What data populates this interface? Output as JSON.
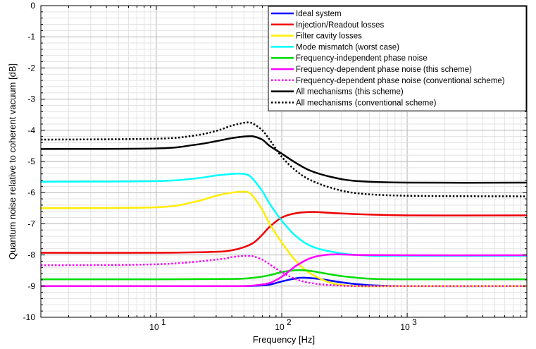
{
  "chart_data": {
    "type": "line",
    "title": "",
    "xlabel": "Frequency [Hz]",
    "ylabel": "Quantum noise relative to coherent vacuum [dB]",
    "x_scale": "log",
    "xlim": [
      1.2,
      9000
    ],
    "ylim": [
      -10,
      0
    ],
    "x_ticks": [
      {
        "value": 10,
        "base": "10",
        "exp": "1"
      },
      {
        "value": 100,
        "base": "10",
        "exp": "2"
      },
      {
        "value": 1000,
        "base": "10",
        "exp": "3"
      }
    ],
    "y_ticks": [
      "0",
      "-1",
      "-2",
      "-3",
      "-4",
      "-5",
      "-6",
      "-7",
      "-8",
      "-9",
      "-10"
    ],
    "y_tick_values": [
      0,
      -1,
      -2,
      -3,
      -4,
      -5,
      -6,
      -7,
      -8,
      -9,
      -10
    ],
    "grid": true,
    "legend_position": "top-right",
    "series": [
      {
        "name": "Ideal system",
        "color": "#0000ff",
        "dash": "solid",
        "x": [
          1.2,
          10,
          40,
          60,
          80,
          100,
          130,
          150,
          200,
          300,
          500,
          1000,
          9000
        ],
        "y": [
          -9.0,
          -9.0,
          -9.0,
          -8.99,
          -8.95,
          -8.85,
          -8.75,
          -8.73,
          -8.77,
          -8.88,
          -8.97,
          -9.0,
          -9.0
        ]
      },
      {
        "name": "Injection/Readout losses",
        "color": "#ee0000",
        "dash": "solid",
        "x": [
          1.2,
          10,
          30,
          40,
          50,
          60,
          70,
          80,
          100,
          130,
          180,
          300,
          1000,
          9000
        ],
        "y": [
          -7.93,
          -7.93,
          -7.9,
          -7.85,
          -7.75,
          -7.6,
          -7.35,
          -7.1,
          -6.8,
          -6.66,
          -6.62,
          -6.67,
          -6.73,
          -6.73
        ]
      },
      {
        "name": "Filter cavity losses",
        "color": "#ffee00",
        "dash": "solid",
        "x": [
          1.2,
          10,
          20,
          30,
          40,
          50,
          55,
          60,
          70,
          80,
          100,
          130,
          170,
          250,
          400,
          1000,
          9000
        ],
        "y": [
          -6.5,
          -6.47,
          -6.3,
          -6.1,
          -6.0,
          -5.97,
          -6.0,
          -6.15,
          -6.55,
          -7.0,
          -7.6,
          -8.2,
          -8.6,
          -8.9,
          -9.0,
          -9.0,
          -9.0
        ]
      },
      {
        "name": "Mode mismatch (worst case)",
        "color": "#00ffff",
        "dash": "solid",
        "x": [
          1.2,
          10,
          20,
          30,
          40,
          45,
          50,
          55,
          60,
          70,
          80,
          100,
          130,
          180,
          300,
          500,
          1000,
          9000
        ],
        "y": [
          -5.65,
          -5.63,
          -5.55,
          -5.45,
          -5.4,
          -5.39,
          -5.4,
          -5.45,
          -5.6,
          -5.95,
          -6.35,
          -6.9,
          -7.4,
          -7.75,
          -7.95,
          -8.02,
          -8.03,
          -8.03
        ]
      },
      {
        "name": "Frequency-independent phase noise",
        "color": "#00dd00",
        "dash": "solid",
        "x": [
          1.2,
          10,
          40,
          60,
          80,
          100,
          130,
          160,
          200,
          300,
          500,
          1000,
          9000
        ],
        "y": [
          -8.78,
          -8.78,
          -8.77,
          -8.73,
          -8.65,
          -8.55,
          -8.49,
          -8.5,
          -8.56,
          -8.68,
          -8.76,
          -8.78,
          -8.78
        ]
      },
      {
        "name": "Frequency-dependent phase noise (this scheme)",
        "color": "#ff00ff",
        "dash": "solid",
        "x": [
          1.2,
          10,
          40,
          60,
          80,
          100,
          130,
          170,
          220,
          280,
          400,
          1000,
          9000
        ],
        "y": [
          -9.0,
          -9.0,
          -9.0,
          -8.98,
          -8.9,
          -8.7,
          -8.35,
          -8.1,
          -8.0,
          -7.98,
          -8.0,
          -8.01,
          -8.01
        ]
      },
      {
        "name": "Frequency-dependent phase noise (conventional scheme)",
        "color": "#ff00ff",
        "dash": "dotted",
        "x": [
          1.2,
          10,
          30,
          40,
          50,
          55,
          60,
          70,
          80,
          100,
          130,
          170,
          250,
          400,
          1000,
          9000
        ],
        "y": [
          -8.33,
          -8.3,
          -8.15,
          -8.07,
          -8.03,
          -8.03,
          -8.05,
          -8.15,
          -8.3,
          -8.55,
          -8.78,
          -8.9,
          -8.97,
          -9.0,
          -9.0,
          -9.0
        ]
      },
      {
        "name": "All mechanisms (this scheme)",
        "color": "#000000",
        "dash": "solid",
        "x": [
          1.2,
          10,
          20,
          30,
          40,
          50,
          55,
          60,
          70,
          80,
          100,
          130,
          170,
          250,
          400,
          1000,
          9000
        ],
        "y": [
          -4.6,
          -4.58,
          -4.47,
          -4.35,
          -4.25,
          -4.2,
          -4.19,
          -4.2,
          -4.3,
          -4.5,
          -4.75,
          -5.05,
          -5.3,
          -5.5,
          -5.63,
          -5.68,
          -5.68
        ]
      },
      {
        "name": "All mechanisms (conventional scheme)",
        "color": "#000000",
        "dash": "dotted",
        "x": [
          1.2,
          10,
          20,
          30,
          40,
          50,
          55,
          60,
          70,
          80,
          100,
          130,
          170,
          250,
          400,
          1000,
          9000
        ],
        "y": [
          -4.3,
          -4.27,
          -4.17,
          -4.02,
          -3.85,
          -3.76,
          -3.75,
          -3.8,
          -4.0,
          -4.3,
          -4.85,
          -5.3,
          -5.6,
          -5.85,
          -6.02,
          -6.1,
          -6.12
        ]
      }
    ]
  }
}
